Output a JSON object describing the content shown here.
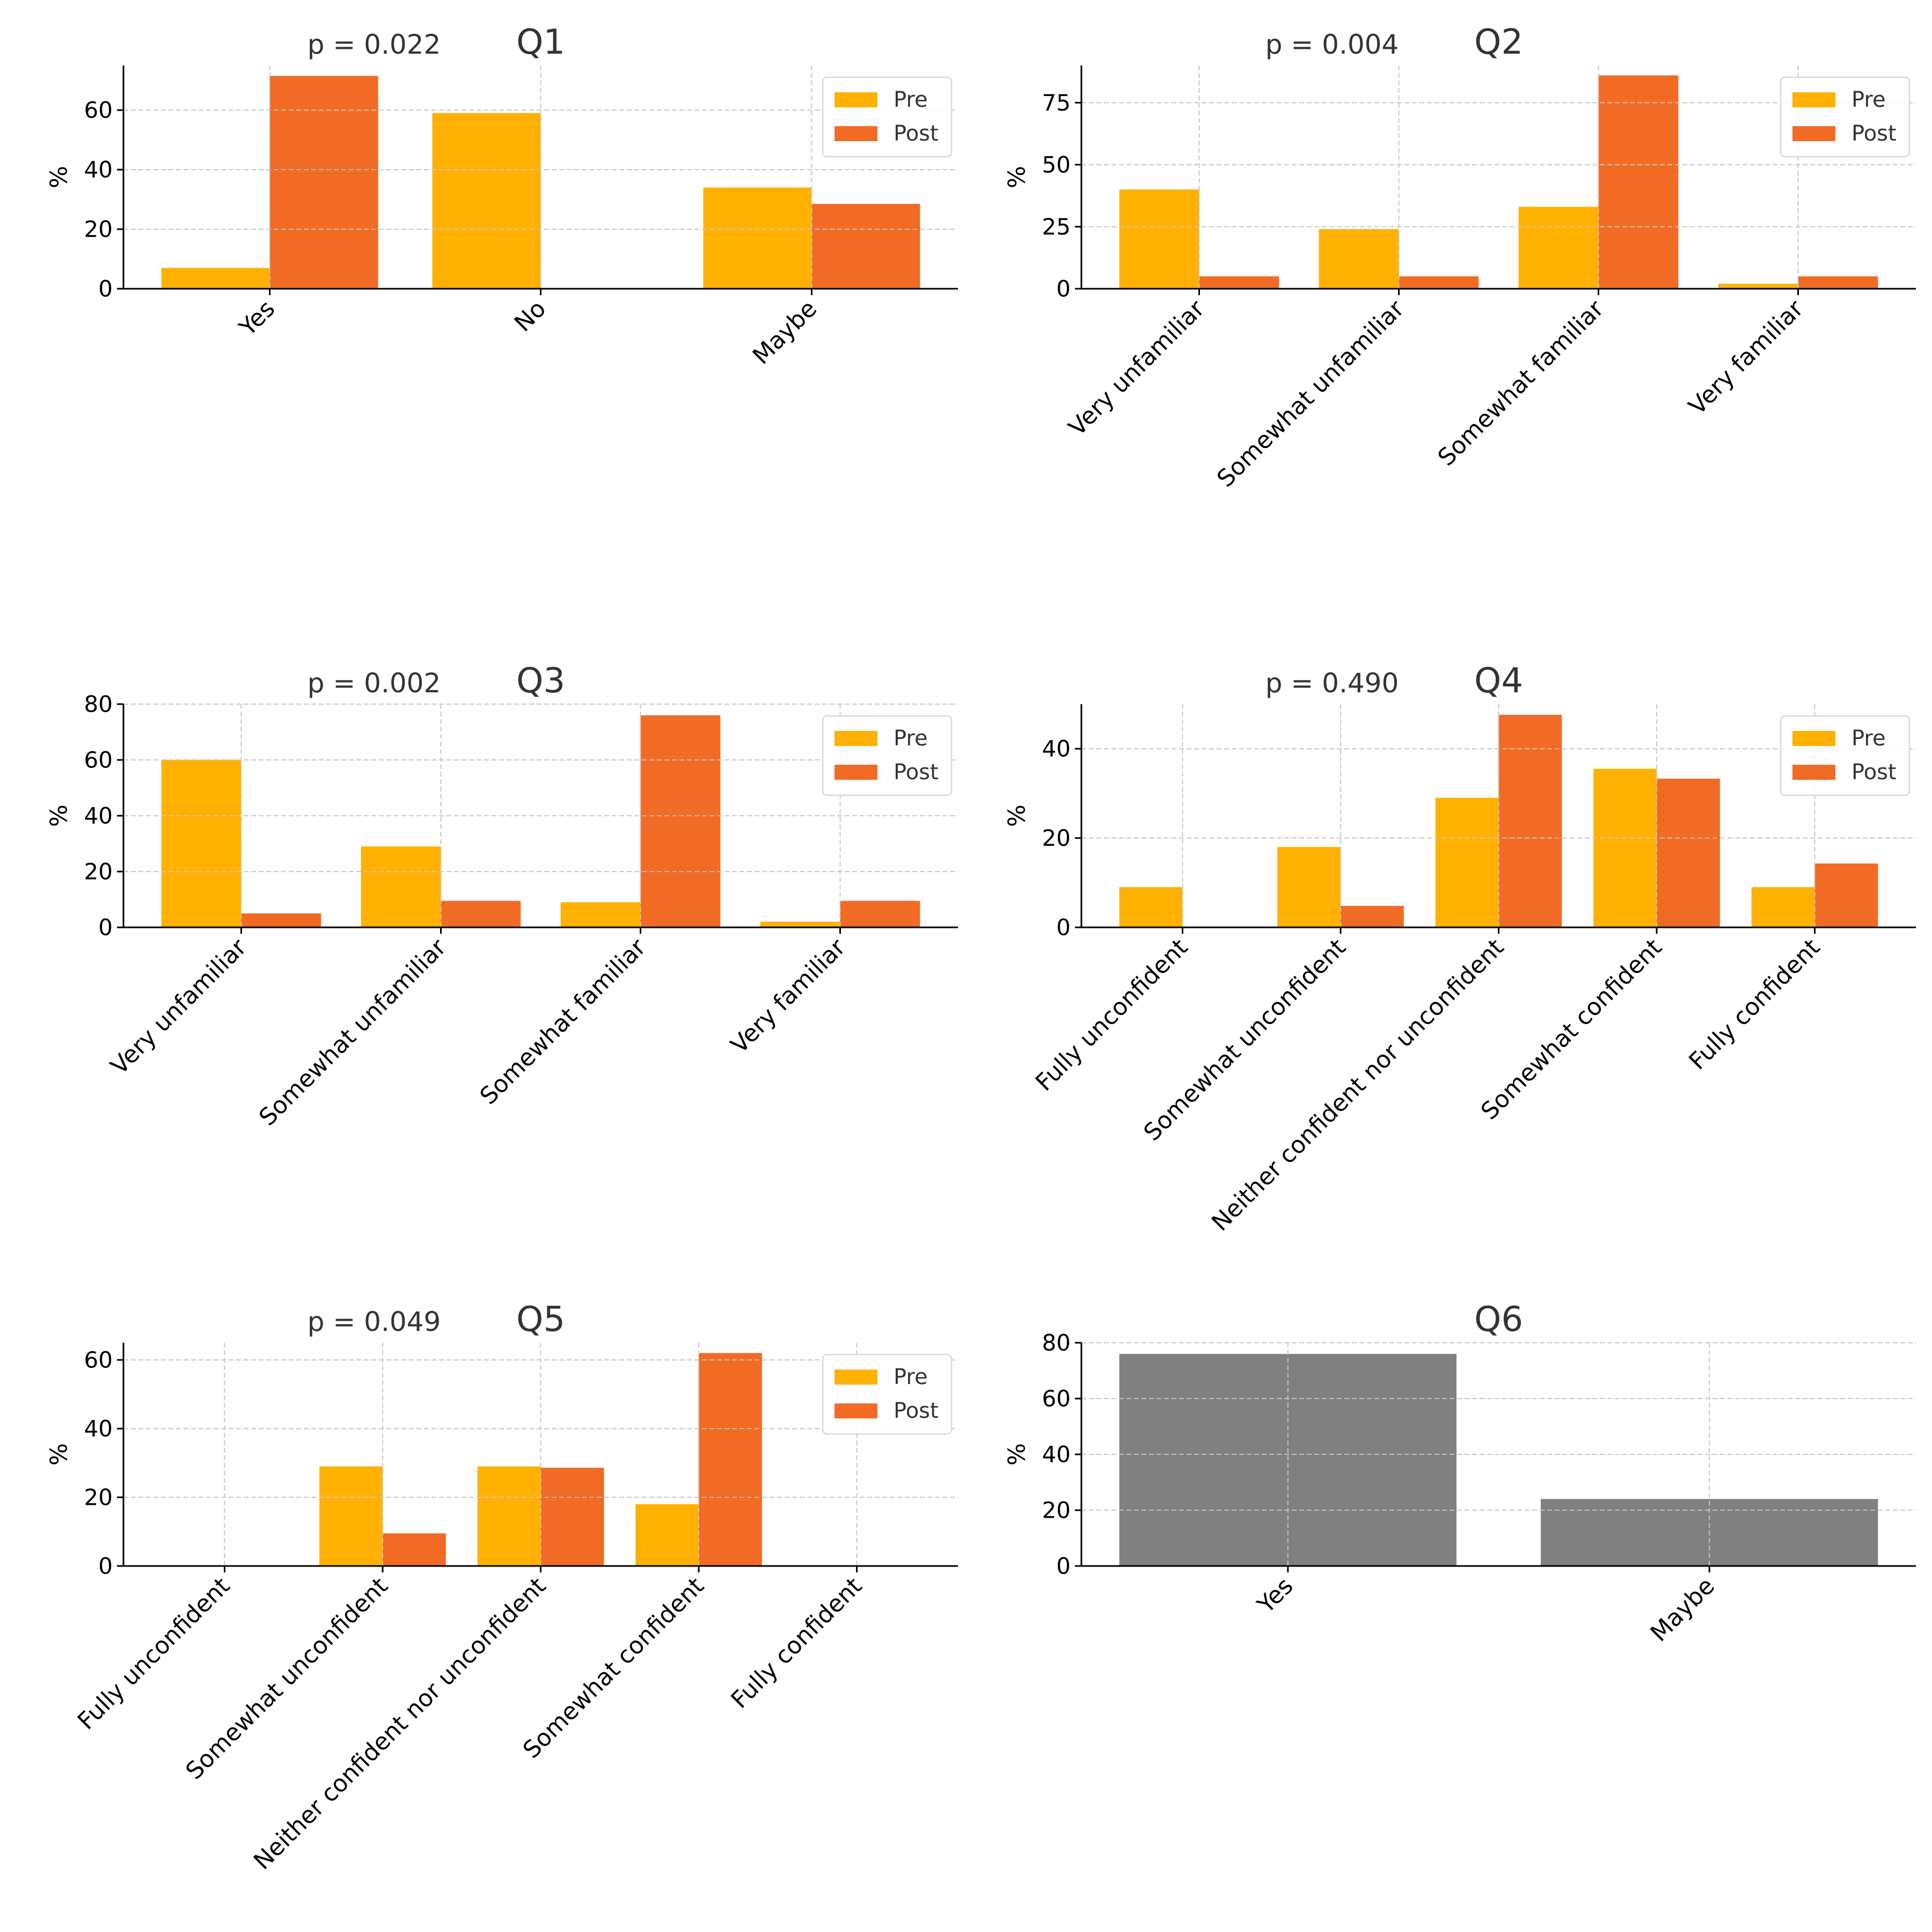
{
  "colors": {
    "pre": "#FFB000",
    "post": "#F26B25",
    "single": "#808080",
    "text": "#333333",
    "grid": "#cccccc",
    "axis": "#000000"
  },
  "chart_data": [
    {
      "type": "bar",
      "title": "Q1",
      "pvalue": "p = 0.022",
      "ylabel": "%",
      "ylim": [
        0,
        75
      ],
      "yticks": [
        0,
        20,
        40,
        60
      ],
      "categories": [
        "Yes",
        "No",
        "Maybe"
      ],
      "legend": "top-right",
      "series": [
        {
          "name": "Pre",
          "values": [
            7,
            59,
            34
          ]
        },
        {
          "name": "Post",
          "values": [
            71.5,
            0,
            28.5
          ]
        }
      ]
    },
    {
      "type": "bar",
      "title": "Q2",
      "pvalue": "p = 0.004",
      "ylabel": "%",
      "ylim": [
        0,
        90
      ],
      "yticks": [
        0,
        25,
        50,
        75
      ],
      "categories": [
        "Very unfamiliar",
        "Somewhat unfamiliar",
        "Somewhat familiar",
        "Very familiar"
      ],
      "legend": "top-right",
      "series": [
        {
          "name": "Pre",
          "values": [
            40,
            24,
            33,
            2
          ]
        },
        {
          "name": "Post",
          "values": [
            5,
            5,
            86,
            5
          ]
        }
      ]
    },
    {
      "type": "bar",
      "title": "Q3",
      "pvalue": "p = 0.002",
      "ylabel": "%",
      "ylim": [
        0,
        80
      ],
      "yticks": [
        0,
        20,
        40,
        60,
        80
      ],
      "categories": [
        "Very unfamiliar",
        "Somewhat unfamiliar",
        "Somewhat familiar",
        "Very familiar"
      ],
      "legend": "top-right",
      "series": [
        {
          "name": "Pre",
          "values": [
            60,
            29,
            9,
            2
          ]
        },
        {
          "name": "Post",
          "values": [
            5,
            9.5,
            76,
            9.5
          ]
        }
      ]
    },
    {
      "type": "bar",
      "title": "Q4",
      "pvalue": "p = 0.490",
      "ylabel": "%",
      "ylim": [
        0,
        50
      ],
      "yticks": [
        0,
        20,
        40
      ],
      "categories": [
        "Fully unconfident",
        "Somewhat unconfident",
        "Neither confident nor unconfident",
        "Somewhat confident",
        "Fully confident"
      ],
      "legend": "top-right",
      "series": [
        {
          "name": "Pre",
          "values": [
            9,
            18,
            29,
            35.5,
            9
          ]
        },
        {
          "name": "Post",
          "values": [
            0,
            4.8,
            47.6,
            33.3,
            14.3
          ]
        }
      ]
    },
    {
      "type": "bar",
      "title": "Q5",
      "pvalue": "p = 0.049",
      "ylabel": "%",
      "ylim": [
        0,
        65
      ],
      "yticks": [
        0,
        20,
        40,
        60
      ],
      "categories": [
        "Fully unconfident",
        "Somewhat unconfident",
        "Neither confident nor unconfident",
        "Somewhat confident",
        "Fully confident"
      ],
      "legend": "top-right",
      "series": [
        {
          "name": "Pre",
          "values": [
            0,
            29,
            29,
            18,
            0
          ]
        },
        {
          "name": "Post",
          "values": [
            0,
            9.5,
            28.6,
            62,
            0
          ]
        }
      ]
    },
    {
      "type": "bar",
      "title": "Q6",
      "ylabel": "%",
      "ylim": [
        0,
        80
      ],
      "yticks": [
        0,
        20,
        40,
        60,
        80
      ],
      "categories": [
        "Yes",
        "Maybe"
      ],
      "series": [
        {
          "name": "",
          "values": [
            76,
            24
          ]
        }
      ]
    }
  ]
}
